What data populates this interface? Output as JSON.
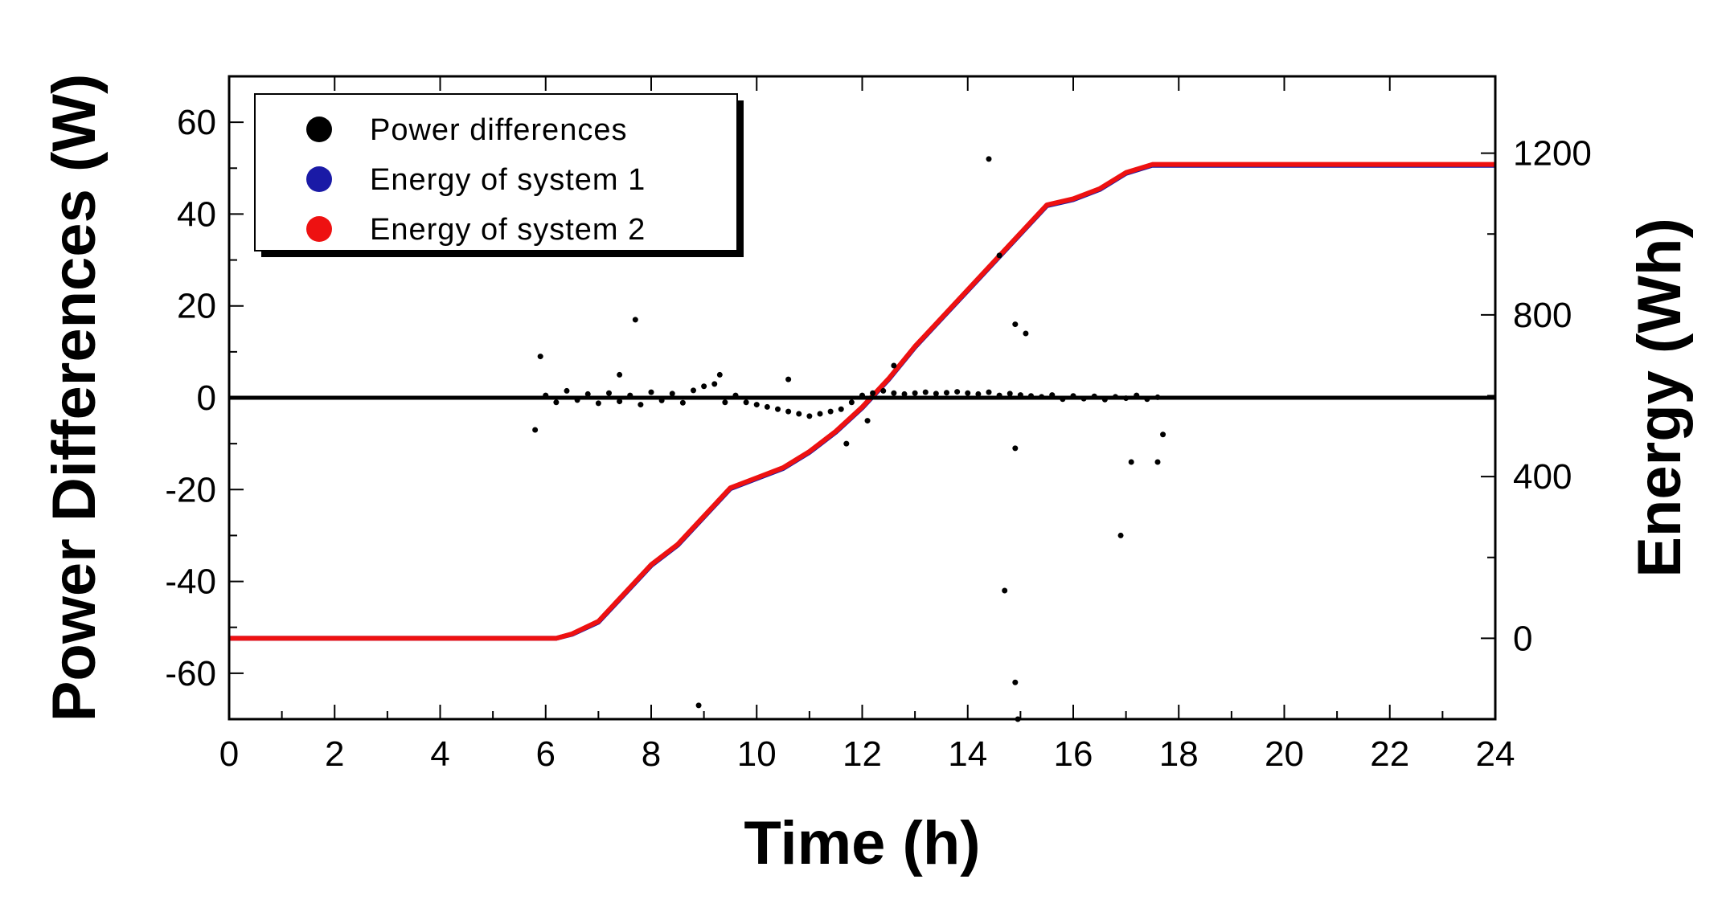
{
  "chart_data": {
    "type": "scatter",
    "title": "",
    "xlabel": "Time (h)",
    "ylabel_left": "Power Differences (W)",
    "ylabel_right": "Energy (Wh)",
    "xlim": [
      0,
      24
    ],
    "ylim_left": [
      -70,
      70
    ],
    "ylim_right": [
      -200,
      1390
    ],
    "x_ticks": [
      0,
      2,
      4,
      6,
      8,
      10,
      12,
      14,
      16,
      18,
      20,
      22,
      24
    ],
    "y_left_ticks": [
      -60,
      -40,
      -20,
      0,
      20,
      40,
      60
    ],
    "y_right_ticks": [
      0,
      400,
      800,
      1200
    ],
    "legend_position": "top-left",
    "legend": [
      {
        "label": "Power differences",
        "color": "#000000"
      },
      {
        "label": "Energy of system 1",
        "color": "#1a1aa6"
      },
      {
        "label": "Energy of system 2",
        "color": "#ee1111"
      }
    ],
    "series": [
      {
        "name": "Energy of system 1",
        "axis": "right",
        "color": "#1a1aa6",
        "x": [
          0,
          6.2,
          6.5,
          7,
          7.5,
          8,
          8.5,
          9,
          9.5,
          10,
          10.5,
          11,
          11.5,
          12,
          12.5,
          13,
          13.5,
          14,
          14.5,
          15,
          15.5,
          16,
          16.5,
          17,
          17.5,
          18,
          20,
          22,
          24
        ],
        "values": [
          0,
          0,
          10,
          40,
          110,
          180,
          230,
          300,
          370,
          395,
          420,
          460,
          510,
          570,
          640,
          720,
          790,
          860,
          930,
          1000,
          1070,
          1085,
          1110,
          1150,
          1170,
          1170,
          1170,
          1170,
          1170
        ]
      },
      {
        "name": "Energy of system 2",
        "axis": "right",
        "color": "#ee1111",
        "x": [
          0,
          6.2,
          6.5,
          7,
          7.5,
          8,
          8.5,
          9,
          9.5,
          10,
          10.5,
          11,
          11.5,
          12,
          12.5,
          13,
          13.5,
          14,
          14.5,
          15,
          15.5,
          16,
          16.5,
          17,
          17.5,
          18,
          20,
          22,
          24
        ],
        "values": [
          0,
          0,
          11,
          42,
          112,
          182,
          232,
          302,
          372,
          397,
          422,
          462,
          512,
          572,
          642,
          722,
          792,
          862,
          932,
          1002,
          1072,
          1087,
          1112,
          1152,
          1172,
          1172,
          1172,
          1172,
          1172
        ]
      },
      {
        "name": "Power differences",
        "axis": "left",
        "color": "#000000",
        "baseline_x": [
          0,
          24
        ],
        "baseline_values": [
          0,
          0
        ],
        "noise_x": [
          6.0,
          6.2,
          6.4,
          6.6,
          6.8,
          7.0,
          7.2,
          7.4,
          7.6,
          7.8,
          8.0,
          8.2,
          8.4,
          8.6,
          8.8,
          9.0,
          9.2,
          9.4,
          9.6,
          9.8,
          10.0,
          10.2,
          10.4,
          10.6,
          10.8,
          11.0,
          11.2,
          11.4,
          11.6,
          11.8,
          12.0,
          12.2,
          12.4,
          12.6,
          12.8,
          13.0,
          13.2,
          13.4,
          13.6,
          13.8,
          14.0,
          14.2,
          14.4,
          14.6,
          14.8,
          15.0,
          15.2,
          15.4,
          15.6,
          15.8,
          16.0,
          16.2,
          16.4,
          16.6,
          16.8,
          17.0,
          17.2,
          17.4,
          17.6
        ],
        "noise_values": [
          0.5,
          -1,
          1.5,
          -0.5,
          0.8,
          -1.2,
          1,
          -0.8,
          0.5,
          -1.5,
          1.2,
          -0.6,
          0.9,
          -1.1,
          1.6,
          2.5,
          3,
          -1,
          0.5,
          -1,
          -1.5,
          -2,
          -2.5,
          -3,
          -3.5,
          -4,
          -3.5,
          -3,
          -2.5,
          -1,
          0.5,
          1,
          1.5,
          1,
          0.8,
          1,
          1.2,
          0.9,
          1.1,
          1.3,
          1,
          0.8,
          1.2,
          0.5,
          0.9,
          0.6,
          0.4,
          0.2,
          0.6,
          -0.3,
          0.4,
          -0.2,
          0.3,
          -0.4,
          0.2,
          -0.1,
          0.5,
          -0.3,
          0.1
        ],
        "outliers_x": [
          5.9,
          5.8,
          7.7,
          7.4,
          8.9,
          9.3,
          11.7,
          12.6,
          14.4,
          14.6,
          14.7,
          14.9,
          14.9,
          14.9,
          14.95,
          15.1,
          16.9,
          17.1,
          17.6,
          17.7,
          12.1,
          10.6
        ],
        "outliers_values": [
          9,
          -7,
          17,
          5,
          -67,
          5,
          -10,
          7,
          52,
          31,
          -42,
          16,
          -11,
          -62,
          -70,
          14,
          -30,
          -14,
          -14,
          -8,
          -5,
          4
        ]
      }
    ]
  }
}
